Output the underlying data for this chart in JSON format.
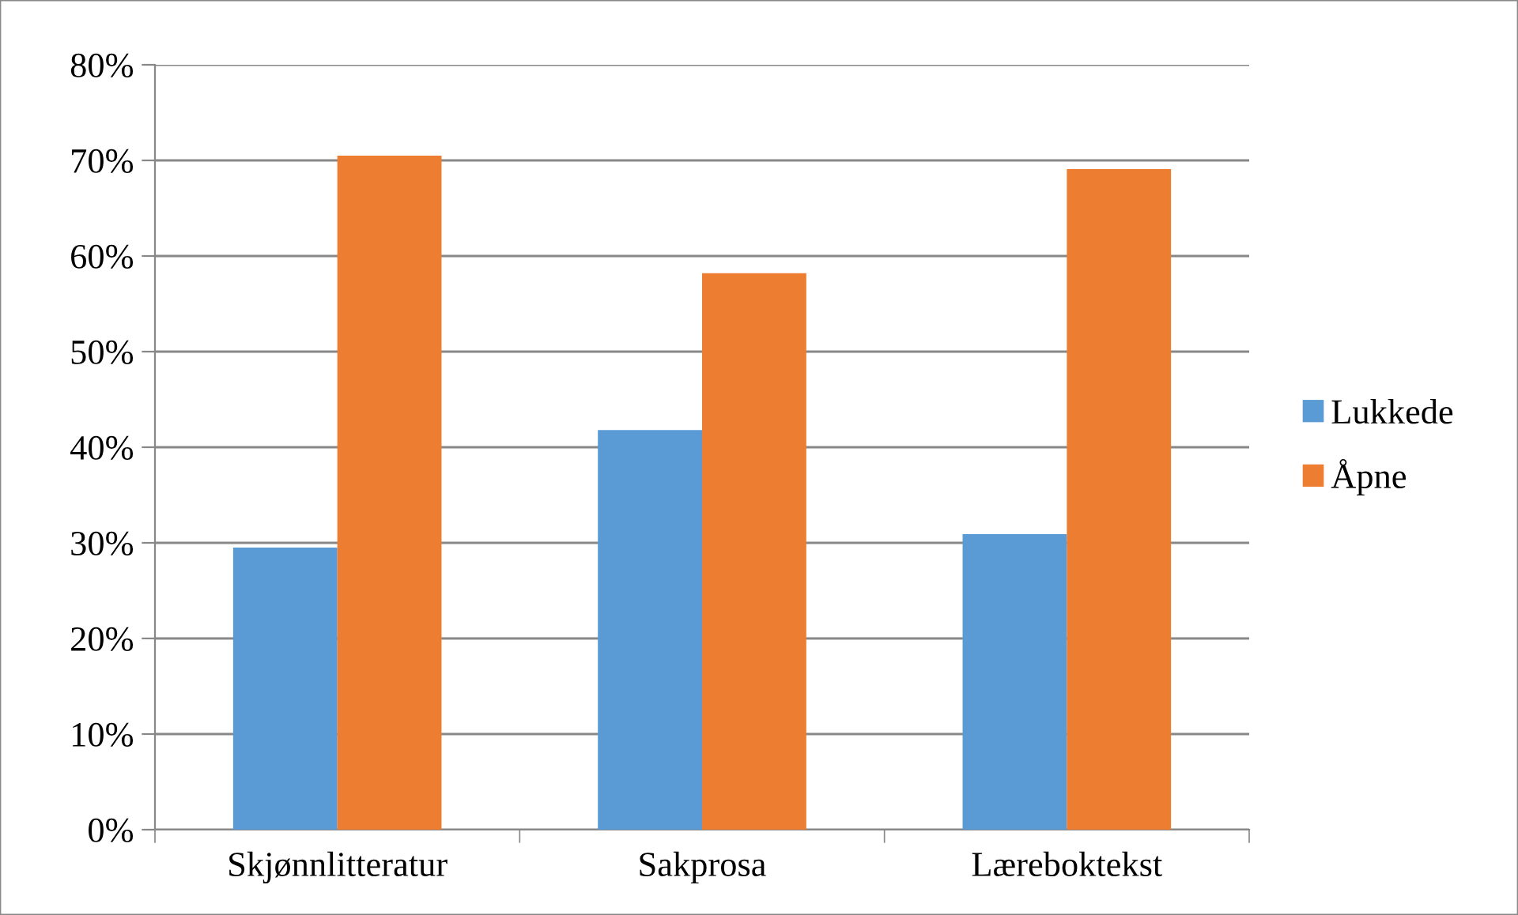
{
  "chart_data": {
    "type": "bar",
    "categories": [
      "Skjønnlitteratur",
      "Sakprosa",
      "Læreboktekst"
    ],
    "series": [
      {
        "name": "Lukkede",
        "color": "#5b9bd5",
        "values": [
          29.5,
          41.8,
          30.9
        ]
      },
      {
        "name": "Åpne",
        "color": "#ed7d31",
        "values": [
          70.5,
          58.2,
          69.1
        ]
      }
    ],
    "ylim": [
      0,
      80
    ],
    "yticks": [
      {
        "value": 0,
        "label": "0%"
      },
      {
        "value": 10,
        "label": "10%"
      },
      {
        "value": 20,
        "label": "20%"
      },
      {
        "value": 30,
        "label": "30%"
      },
      {
        "value": 40,
        "label": "40%"
      },
      {
        "value": 50,
        "label": "50%"
      },
      {
        "value": 60,
        "label": "60%"
      },
      {
        "value": 70,
        "label": "70%"
      },
      {
        "value": 80,
        "label": "80%"
      }
    ],
    "grid": "y",
    "legend": "right"
  }
}
